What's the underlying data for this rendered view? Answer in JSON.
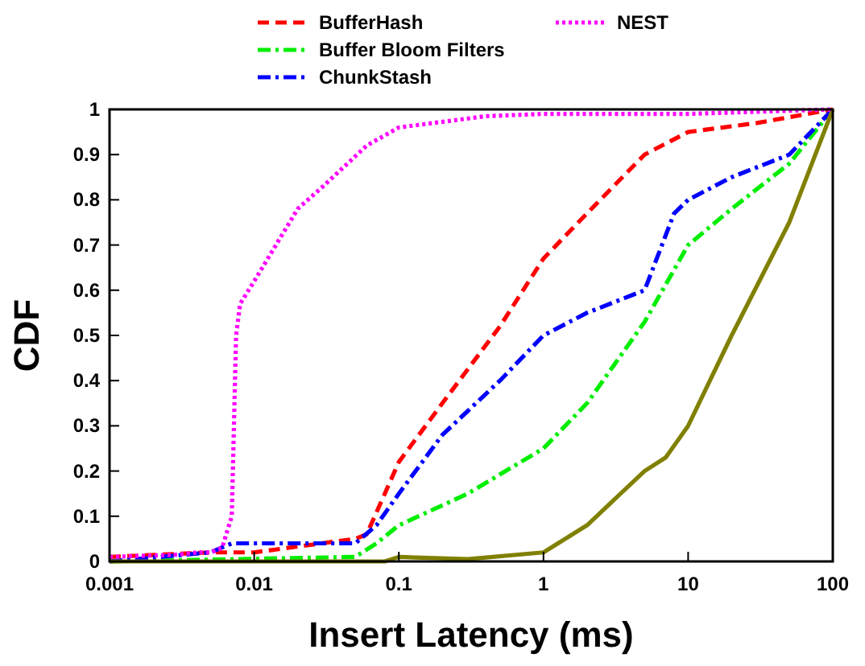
{
  "chart_data": {
    "type": "line",
    "xlabel": "Insert Latency (ms)",
    "ylabel": "CDF",
    "log": "x",
    "xlim": [
      0.001,
      100
    ],
    "xticks": [
      0.001,
      0.01,
      0.1,
      1,
      10,
      100
    ],
    "ylim": [
      0,
      1
    ],
    "yticks": [
      0,
      0.1,
      0.2,
      0.3,
      0.4,
      0.5,
      0.6,
      0.7,
      0.8,
      0.9,
      1
    ],
    "grid": false,
    "legend": "top",
    "series": [
      {
        "name": "BufferHash",
        "color": "#ff0000",
        "line_style": "dashed",
        "x": [
          0.001,
          0.005,
          0.01,
          0.05,
          0.06,
          0.08,
          0.1,
          0.2,
          0.5,
          1,
          2,
          5,
          10,
          30,
          100
        ],
        "values": [
          0.01,
          0.02,
          0.02,
          0.05,
          0.06,
          0.15,
          0.22,
          0.35,
          0.52,
          0.67,
          0.77,
          0.9,
          0.95,
          0.97,
          1
        ]
      },
      {
        "name": "Buffer Bloom Filters",
        "color": "#00ee00",
        "line_style": "dashdot",
        "x": [
          0.001,
          0.05,
          0.07,
          0.1,
          0.3,
          1,
          2,
          5,
          10,
          20,
          50,
          100
        ],
        "values": [
          0,
          0.01,
          0.04,
          0.08,
          0.15,
          0.25,
          0.35,
          0.53,
          0.7,
          0.78,
          0.88,
          1
        ]
      },
      {
        "name": "ChunkStash",
        "color": "#0000ff",
        "line_style": "dashdot",
        "x": [
          0.001,
          0.005,
          0.007,
          0.05,
          0.07,
          0.1,
          0.2,
          0.5,
          1,
          2,
          5,
          8,
          10,
          20,
          50,
          100
        ],
        "values": [
          0,
          0.02,
          0.04,
          0.04,
          0.08,
          0.15,
          0.28,
          0.4,
          0.5,
          0.55,
          0.6,
          0.77,
          0.8,
          0.85,
          0.9,
          1
        ]
      },
      {
        "color": "#808000",
        "line_style": "solid",
        "x": [
          0.001,
          0.08,
          0.1,
          0.3,
          1,
          2,
          5,
          7,
          10,
          20,
          50,
          100
        ],
        "values": [
          0,
          0,
          0.01,
          0.005,
          0.02,
          0.08,
          0.2,
          0.23,
          0.3,
          0.5,
          0.75,
          1
        ]
      },
      {
        "name": "NEST",
        "color": "#ff00ff",
        "line_style": "dotted",
        "x": [
          0.001,
          0.003,
          0.004,
          0.005,
          0.006,
          0.007,
          0.0075,
          0.008,
          0.01,
          0.02,
          0.03,
          0.06,
          0.1,
          0.4,
          1,
          10,
          100
        ],
        "values": [
          0.01,
          0.015,
          0.02,
          0.02,
          0.03,
          0.1,
          0.5,
          0.57,
          0.62,
          0.78,
          0.83,
          0.92,
          0.96,
          0.985,
          0.99,
          0.99,
          1
        ]
      }
    ]
  }
}
